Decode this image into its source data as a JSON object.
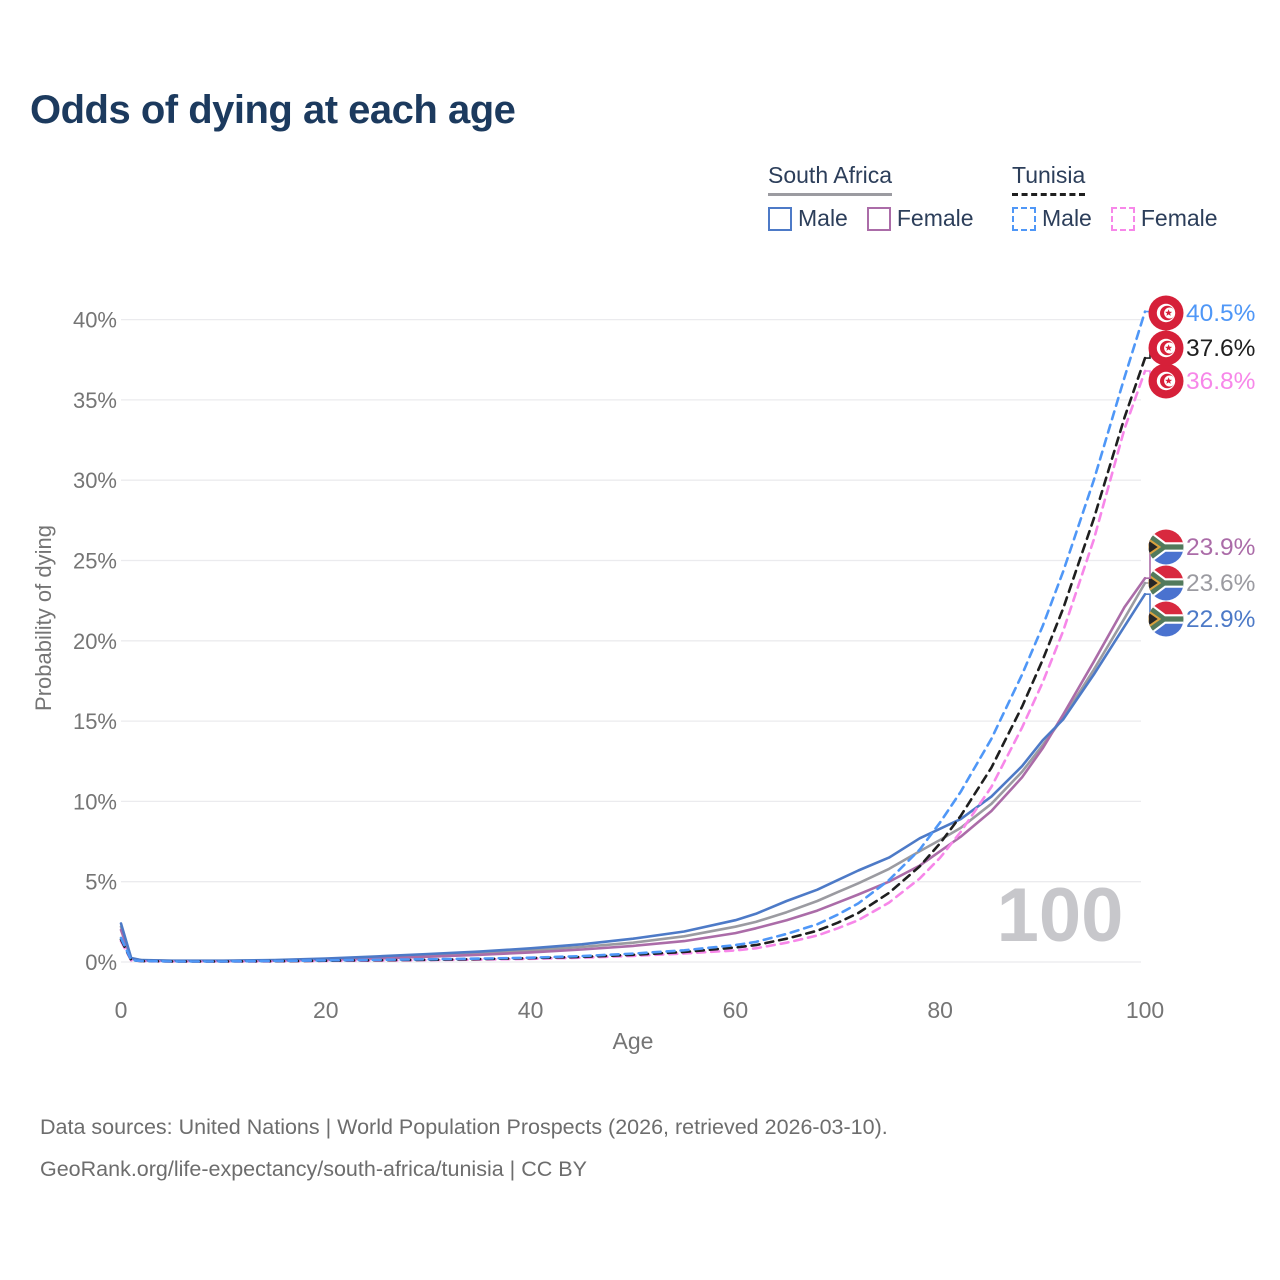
{
  "title": "Odds of dying at each age",
  "watermark": "100",
  "legend": {
    "groups": [
      {
        "label": "South Africa",
        "line_style": "solid",
        "color": "#9b9ba1",
        "items": [
          {
            "label": "Male",
            "color": "#4d7ac7",
            "dashed": false
          },
          {
            "label": "Female",
            "color": "#ab6ca8",
            "dashed": false
          }
        ]
      },
      {
        "label": "Tunisia",
        "line_style": "dashed",
        "color": "#1f1f1f",
        "items": [
          {
            "label": "Male",
            "color": "#4f97f7",
            "dashed": true
          },
          {
            "label": "Female",
            "color": "#f787e9",
            "dashed": true
          }
        ]
      }
    ]
  },
  "footer": {
    "line1": "Data sources: United Nations | World Population Prospects (2026, retrieved 2026-03-10).",
    "line2": "GeoRank.org/life-expectancy/south-africa/tunisia | CC BY"
  },
  "chart_data": {
    "type": "line",
    "title": "Odds of dying at each age",
    "xlabel": "Age",
    "ylabel": "Probability of dying",
    "xlim": [
      0,
      100
    ],
    "ylim": [
      0,
      40.5
    ],
    "grid": "horizontal",
    "legend_position": "top-right",
    "x_ticks": {
      "values": [
        0,
        20,
        40,
        60,
        80,
        100
      ],
      "labels": [
        "0",
        "20",
        "40",
        "60",
        "80",
        "100"
      ]
    },
    "y_ticks": {
      "values": [
        0,
        5,
        10,
        15,
        20,
        25,
        30,
        35,
        40
      ],
      "labels": [
        "0%",
        "5%",
        "10%",
        "15%",
        "20%",
        "25%",
        "30%",
        "35%",
        "40%"
      ]
    },
    "x": [
      0,
      1,
      2,
      5,
      10,
      15,
      20,
      25,
      30,
      35,
      40,
      45,
      50,
      55,
      60,
      62,
      65,
      68,
      70,
      72,
      75,
      78,
      80,
      82,
      85,
      88,
      90,
      92,
      95,
      98,
      100
    ],
    "series": [
      {
        "id": "sa_both",
        "name": "South Africa — Both sexes",
        "country": "za",
        "sex": "both",
        "color": "#9b9ba1",
        "dashed": false,
        "end_label": "23.6%",
        "values": [
          2.2,
          0.22,
          0.11,
          0.07,
          0.07,
          0.1,
          0.18,
          0.28,
          0.42,
          0.55,
          0.72,
          0.94,
          1.2,
          1.6,
          2.2,
          2.5,
          3.1,
          3.8,
          4.35,
          4.9,
          5.8,
          6.9,
          7.6,
          8.35,
          9.85,
          11.85,
          13.5,
          15.2,
          18.2,
          21.4,
          23.6
        ]
      },
      {
        "id": "sa_female",
        "name": "South Africa — Female",
        "country": "za",
        "sex": "female",
        "color": "#ab6ca8",
        "dashed": false,
        "end_label": "23.9%",
        "values": [
          2.0,
          0.2,
          0.1,
          0.06,
          0.06,
          0.08,
          0.14,
          0.22,
          0.33,
          0.45,
          0.6,
          0.78,
          1.0,
          1.3,
          1.8,
          2.1,
          2.6,
          3.2,
          3.7,
          4.2,
          5.0,
          6.0,
          6.9,
          7.8,
          9.4,
          11.5,
          13.3,
          15.4,
          18.7,
          22.1,
          23.9
        ]
      },
      {
        "id": "sa_male",
        "name": "South Africa — Male",
        "country": "za",
        "sex": "male",
        "color": "#4d7ac7",
        "dashed": false,
        "end_label": "22.9%",
        "values": [
          2.4,
          0.25,
          0.12,
          0.08,
          0.08,
          0.12,
          0.22,
          0.35,
          0.5,
          0.65,
          0.85,
          1.1,
          1.45,
          1.9,
          2.6,
          3.0,
          3.8,
          4.5,
          5.1,
          5.7,
          6.5,
          7.7,
          8.3,
          8.9,
          10.3,
          12.2,
          13.8,
          15.1,
          17.9,
          20.9,
          22.9
        ]
      },
      {
        "id": "tn_female",
        "name": "Tunisia — Female",
        "country": "tn",
        "sex": "female",
        "color": "#f787e9",
        "dashed": true,
        "end_label": "36.8%",
        "values": [
          1.3,
          0.1,
          0.05,
          0.03,
          0.03,
          0.04,
          0.07,
          0.09,
          0.12,
          0.15,
          0.2,
          0.27,
          0.38,
          0.53,
          0.72,
          0.85,
          1.2,
          1.65,
          2.1,
          2.6,
          3.7,
          5.2,
          6.5,
          8.1,
          10.9,
          14.6,
          17.4,
          20.6,
          26.3,
          33.2,
          36.8
        ]
      },
      {
        "id": "tn_both",
        "name": "Tunisia — Both sexes",
        "country": "tn",
        "sex": "both",
        "color": "#1f1f1f",
        "dashed": true,
        "end_label": "37.6%",
        "values": [
          1.4,
          0.11,
          0.055,
          0.035,
          0.035,
          0.05,
          0.08,
          0.11,
          0.14,
          0.18,
          0.24,
          0.32,
          0.45,
          0.62,
          0.9,
          1.05,
          1.45,
          1.95,
          2.45,
          3.05,
          4.3,
          5.95,
          7.4,
          9.1,
          12.1,
          15.9,
          18.8,
          22.0,
          27.6,
          33.9,
          37.6
        ]
      },
      {
        "id": "tn_male",
        "name": "Tunisia — Male",
        "country": "tn",
        "sex": "male",
        "color": "#4f97f7",
        "dashed": true,
        "end_label": "40.5%",
        "values": [
          1.5,
          0.12,
          0.06,
          0.04,
          0.04,
          0.06,
          0.1,
          0.14,
          0.17,
          0.21,
          0.27,
          0.37,
          0.52,
          0.73,
          1.05,
          1.25,
          1.75,
          2.35,
          2.95,
          3.65,
          5.1,
          7.0,
          8.7,
          10.6,
          13.9,
          17.9,
          20.9,
          24.3,
          30.0,
          36.4,
          40.5
        ]
      }
    ]
  }
}
